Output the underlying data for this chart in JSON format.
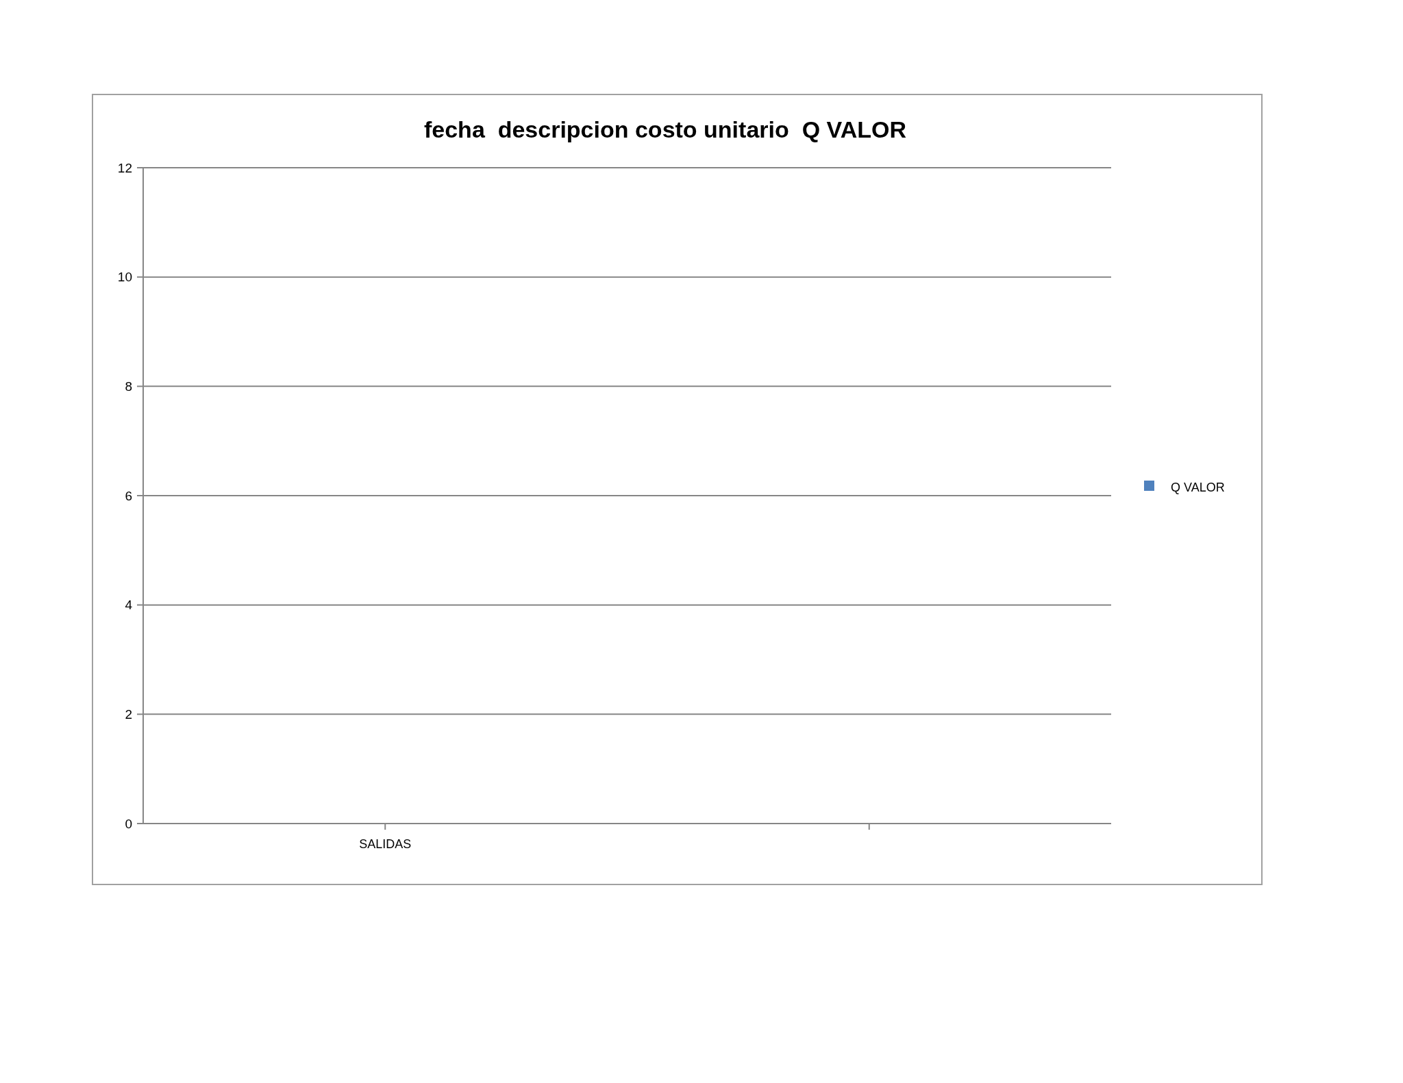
{
  "chart_data": {
    "type": "bar",
    "title": "fecha  descripcion costo unitario  Q VALOR",
    "categories": [
      "SALIDAS",
      null
    ],
    "series": [
      {
        "name": "Q VALOR",
        "color": "#4f81bd",
        "values": [
          null,
          null
        ]
      }
    ],
    "ylim": [
      0,
      12
    ],
    "yticks": [
      0,
      2,
      4,
      6,
      8,
      10,
      12
    ],
    "grid": "y",
    "legend": "right"
  }
}
